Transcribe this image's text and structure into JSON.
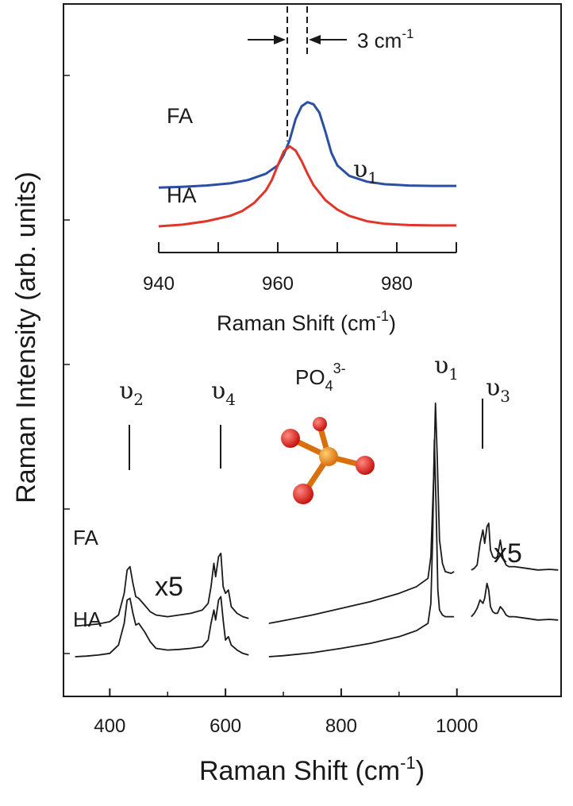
{
  "chart_data": [
    {
      "type": "line",
      "xlabel": "Raman Shift (cm",
      "xlabel_sup": "-1",
      "xlabel_close": ")",
      "ylabel": "Raman Intensity (arb. units)",
      "xlim": [
        320,
        1180
      ],
      "xticks": [
        "400",
        "600",
        "800",
        "1000"
      ],
      "series": [
        {
          "name": "FA",
          "segments": [
            {
              "x": [
                340,
                360,
                380,
                400,
                415,
                425,
                430,
                435,
                440,
                445,
                450,
                460,
                470,
                480,
                500,
                520,
                540,
                560,
                570,
                575,
                580,
                583,
                588,
                592,
                596,
                600,
                605,
                610,
                620,
                630,
                640
              ],
              "y": [
                0.92,
                0.95,
                0.98,
                1.05,
                1.25,
                1.9,
                2.6,
                2.7,
                2.2,
                1.8,
                1.75,
                1.55,
                1.35,
                1.25,
                1.2,
                1.25,
                1.3,
                1.4,
                1.6,
                2.1,
                2.8,
                2.4,
                3.0,
                3.1,
                2.1,
                1.9,
                2.0,
                1.5,
                1.3,
                1.2,
                1.15
              ]
            },
            {
              "x": [
                675,
                700,
                750,
                800,
                850,
                900,
                930,
                950,
                955,
                960,
                963,
                966,
                970,
                975,
                980,
                990,
                995
              ],
              "y": [
                1.0,
                1.08,
                1.25,
                1.45,
                1.65,
                1.9,
                2.1,
                2.35,
                3.0,
                5.5,
                7.6,
                6.0,
                3.5,
                2.8,
                2.55,
                2.5,
                2.55
              ]
            },
            {
              "x": [
                1025,
                1030,
                1035,
                1040,
                1045,
                1048,
                1052,
                1055,
                1058,
                1062,
                1066,
                1070,
                1075,
                1080,
                1085,
                1090,
                1100,
                1120,
                1140,
                1160,
                1175
              ],
              "y": [
                2.6,
                2.65,
                2.75,
                3.4,
                3.8,
                3.4,
                3.9,
                4.0,
                3.2,
                3.0,
                2.95,
                3.0,
                3.5,
                2.95,
                2.75,
                2.7,
                2.7,
                2.65,
                2.6,
                2.62,
                2.6
              ]
            }
          ]
        },
        {
          "name": "HA",
          "segments": [
            {
              "x": [
                340,
                360,
                380,
                400,
                415,
                425,
                430,
                435,
                440,
                445,
                450,
                460,
                470,
                480,
                500,
                520,
                540,
                560,
                570,
                575,
                580,
                583,
                588,
                592,
                596,
                600,
                605,
                610,
                620,
                630,
                640
              ],
              "y": [
                0.0,
                0.02,
                0.05,
                0.1,
                0.35,
                1.0,
                1.7,
                1.75,
                1.3,
                0.95,
                1.0,
                0.75,
                0.45,
                0.25,
                0.2,
                0.22,
                0.25,
                0.3,
                0.5,
                1.0,
                1.4,
                1.1,
                1.7,
                1.8,
                1.1,
                0.5,
                0.6,
                0.35,
                0.2,
                0.1,
                0.05
              ]
            },
            {
              "x": [
                675,
                700,
                750,
                800,
                850,
                900,
                930,
                950,
                955,
                958,
                961,
                964,
                967,
                970,
                975,
                980,
                990,
                995
              ],
              "y": [
                0.0,
                0.03,
                0.12,
                0.25,
                0.4,
                0.6,
                0.78,
                1.0,
                1.6,
                3.5,
                6.5,
                4.5,
                2.0,
                1.4,
                1.25,
                1.2,
                1.2,
                1.2
              ]
            },
            {
              "x": [
                1025,
                1030,
                1035,
                1040,
                1045,
                1048,
                1052,
                1055,
                1058,
                1062,
                1066,
                1070,
                1075,
                1080,
                1085,
                1090,
                1100,
                1120,
                1140,
                1160,
                1175
              ],
              "y": [
                1.2,
                1.3,
                1.45,
                1.7,
                1.6,
                1.75,
                2.2,
                2.0,
                1.5,
                1.35,
                1.3,
                1.3,
                1.5,
                1.4,
                1.25,
                1.2,
                1.2,
                1.15,
                1.1,
                1.12,
                1.1
              ]
            }
          ]
        }
      ],
      "annotations": {
        "v2": "υ",
        "v2_sub": "2",
        "v4": "υ",
        "v4_sub": "4",
        "v1": "υ",
        "v1_sub": "1",
        "v3": "υ",
        "v3_sub": "3",
        "ion": "PO",
        "ion_sub": "4",
        "ion_sup": "3-",
        "x5_left": "x5",
        "x5_right": "x5",
        "fa": "FA",
        "ha": "HA"
      }
    },
    {
      "type": "line",
      "xlabel": "Raman Shift (cm",
      "xlabel_sup": "-1",
      "xlabel_close": ")",
      "xlim": [
        940,
        990
      ],
      "xticks": [
        "940",
        "960",
        "980"
      ],
      "series": [
        {
          "name": "FA",
          "color": "#2b4fa3",
          "x": [
            940,
            944,
            948,
            952,
            955,
            958,
            960,
            961,
            962,
            963,
            964,
            965,
            966,
            967,
            968,
            969,
            970,
            972,
            975,
            978,
            982,
            986,
            990
          ],
          "y": [
            0.92,
            0.94,
            0.97,
            1.02,
            1.1,
            1.25,
            1.45,
            1.7,
            2.05,
            2.55,
            2.85,
            2.95,
            2.9,
            2.7,
            2.25,
            1.75,
            1.45,
            1.2,
            1.06,
            1.0,
            0.97,
            0.96,
            0.96
          ]
        },
        {
          "name": "HA",
          "color": "#e0362a",
          "x": [
            940,
            944,
            948,
            952,
            954,
            956,
            958,
            959,
            960,
            961,
            962,
            963,
            964,
            965,
            966,
            968,
            970,
            972,
            975,
            978,
            982,
            986,
            990
          ],
          "y": [
            0.0,
            0.04,
            0.12,
            0.25,
            0.36,
            0.55,
            0.85,
            1.1,
            1.45,
            1.78,
            1.9,
            1.8,
            1.55,
            1.25,
            0.98,
            0.62,
            0.4,
            0.25,
            0.12,
            0.06,
            0.03,
            0.02,
            0.02
          ]
        }
      ],
      "annotations": {
        "shift": "3 cm",
        "shift_sup": "-1",
        "v1": "υ",
        "v1_sub": "1",
        "fa": "FA",
        "ha": "HA"
      }
    }
  ]
}
